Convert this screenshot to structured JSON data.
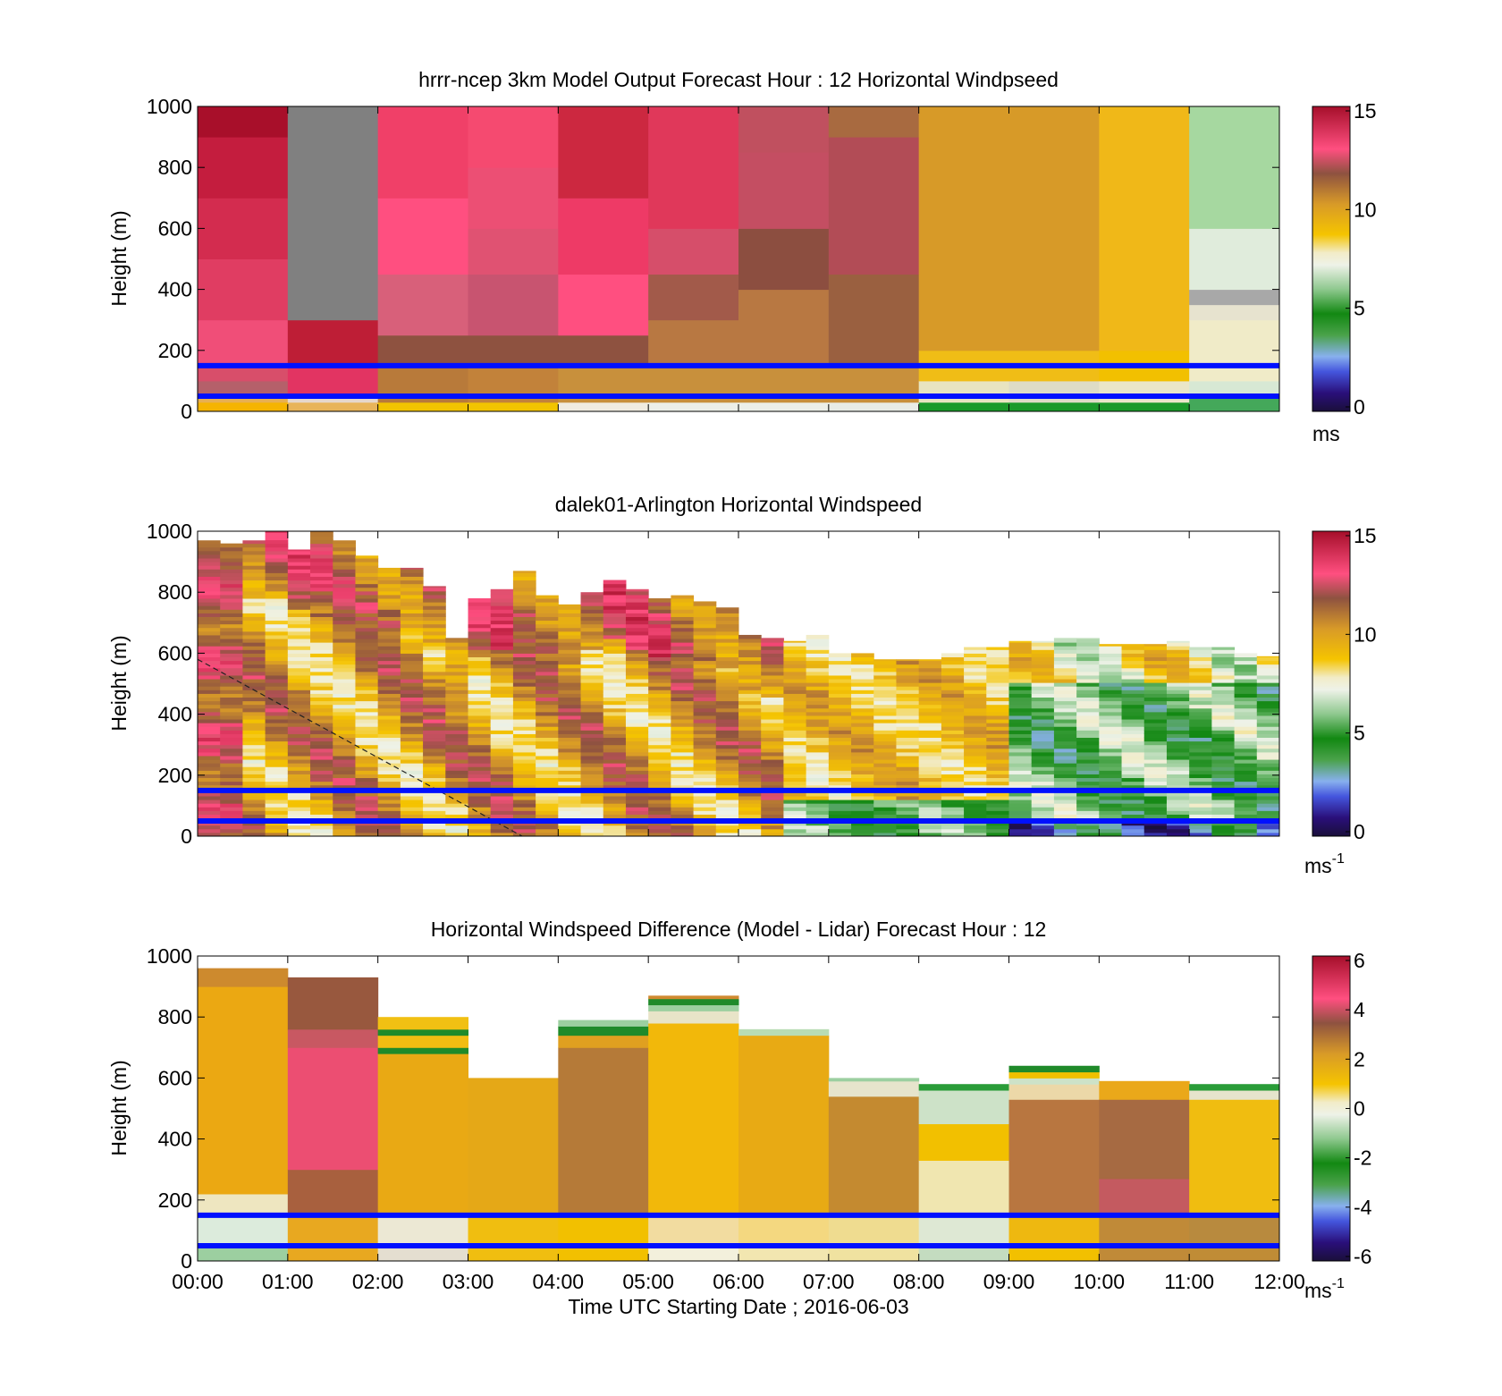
{
  "figure": {
    "xlabel": "Time UTC  Starting Date ; 2016-06-03"
  },
  "chart_data": [
    {
      "type": "heatmap",
      "title": "hrrr-ncep 3km Model Output   Forecast Hour : 12 Horizontal Windpseed",
      "ylabel": "Height (m)",
      "ylim": [
        0,
        1000
      ],
      "yticks": [
        "0",
        "200",
        "400",
        "600",
        "800",
        "1000"
      ],
      "xticks": [],
      "colorbar": {
        "min": 0,
        "max": 15,
        "ticks": [
          "0",
          "5",
          "10",
          "15"
        ],
        "units": "ms",
        "units_sup": ""
      },
      "reference_lines_m": [
        150,
        50
      ],
      "columns": [
        {
          "x0": 0,
          "x1": 1,
          "cells": [
            [
              0,
              30,
              "#f5b400"
            ],
            [
              30,
              50,
              "#e8b050"
            ],
            [
              50,
              100,
              "#b5606a"
            ],
            [
              100,
              150,
              "#d84e6a"
            ],
            [
              150,
              300,
              "#f04e78"
            ],
            [
              300,
              500,
              "#e03d62"
            ],
            [
              500,
              700,
              "#d32c4f"
            ],
            [
              700,
              900,
              "#c41d3e"
            ],
            [
              900,
              1000,
              "#a80f2a"
            ]
          ]
        },
        {
          "x0": 1,
          "x1": 2,
          "cells": [
            [
              0,
              30,
              "#e8b45a"
            ],
            [
              30,
              50,
              "#e6d7cc"
            ],
            [
              50,
              150,
              "#e23462"
            ],
            [
              150,
              300,
              "#be1e36"
            ],
            [
              300,
              1000,
              "#808080"
            ]
          ]
        },
        {
          "x0": 2,
          "x1": 3,
          "cells": [
            [
              0,
              30,
              "#f2c400"
            ],
            [
              30,
              150,
              "#b87a3a"
            ],
            [
              150,
              250,
              "#8e5240"
            ],
            [
              250,
              450,
              "#d8607a"
            ],
            [
              450,
              700,
              "#ff4f80"
            ],
            [
              700,
              1000,
              "#f04068"
            ]
          ]
        },
        {
          "x0": 3,
          "x1": 4,
          "cells": [
            [
              0,
              30,
              "#f2c400"
            ],
            [
              30,
              150,
              "#c2823a"
            ],
            [
              150,
              250,
              "#8e5240"
            ],
            [
              250,
              450,
              "#c85470"
            ],
            [
              450,
              600,
              "#e05272"
            ],
            [
              600,
              800,
              "#ec4f74"
            ],
            [
              800,
              1000,
              "#f54a70"
            ]
          ]
        },
        {
          "x0": 4,
          "x1": 5,
          "cells": [
            [
              0,
              30,
              "#f0ece0"
            ],
            [
              30,
              150,
              "#c8903c"
            ],
            [
              150,
              250,
              "#8e5240"
            ],
            [
              250,
              450,
              "#ff4f80"
            ],
            [
              450,
              700,
              "#ee3a66"
            ],
            [
              700,
              1000,
              "#cc2840"
            ]
          ]
        },
        {
          "x0": 5,
          "x1": 6,
          "cells": [
            [
              0,
              30,
              "#ecefe8"
            ],
            [
              30,
              150,
              "#c8903c"
            ],
            [
              150,
              300,
              "#b87842"
            ],
            [
              300,
              450,
              "#a25a4a"
            ],
            [
              450,
              600,
              "#d64e6a"
            ],
            [
              600,
              1000,
              "#e0385a"
            ]
          ]
        },
        {
          "x0": 6,
          "x1": 7,
          "cells": [
            [
              0,
              30,
              "#ecefe8"
            ],
            [
              30,
              150,
              "#c8903c"
            ],
            [
              150,
              400,
              "#b87842"
            ],
            [
              400,
              600,
              "#8c4e40"
            ],
            [
              600,
              850,
              "#c44e62"
            ],
            [
              850,
              1000,
              "#c0505f"
            ]
          ]
        },
        {
          "x0": 7,
          "x1": 8,
          "cells": [
            [
              0,
              30,
              "#e8ece6"
            ],
            [
              30,
              150,
              "#c8903c"
            ],
            [
              150,
              450,
              "#9a6040"
            ],
            [
              450,
              900,
              "#b24c56"
            ],
            [
              900,
              1000,
              "#a86a40"
            ]
          ]
        },
        {
          "x0": 8,
          "x1": 9,
          "cells": [
            [
              0,
              30,
              "#1a9a2a"
            ],
            [
              30,
              100,
              "#e8e4c0"
            ],
            [
              100,
              200,
              "#f0bd16"
            ],
            [
              200,
              1000,
              "#d79a28"
            ]
          ]
        },
        {
          "x0": 9,
          "x1": 10,
          "cells": [
            [
              0,
              30,
              "#1a9a2a"
            ],
            [
              30,
              100,
              "#dedcc6"
            ],
            [
              100,
              200,
              "#f0bd16"
            ],
            [
              200,
              1000,
              "#d79a28"
            ]
          ]
        },
        {
          "x0": 10,
          "x1": 11,
          "cells": [
            [
              0,
              30,
              "#1a9a2a"
            ],
            [
              30,
              100,
              "#eae6c8"
            ],
            [
              100,
              200,
              "#f2c000"
            ],
            [
              200,
              1000,
              "#f0b818"
            ]
          ]
        },
        {
          "x0": 11,
          "x1": 12,
          "cells": [
            [
              0,
              50,
              "#44a85a"
            ],
            [
              50,
              100,
              "#d7e8d4"
            ],
            [
              100,
              300,
              "#f0ebc8"
            ],
            [
              300,
              350,
              "#e7e3cf"
            ],
            [
              350,
              400,
              "#a8a8a8"
            ],
            [
              400,
              600,
              "#e0ecdc"
            ],
            [
              600,
              1000,
              "#a6d8a0"
            ]
          ]
        }
      ]
    },
    {
      "type": "heatmap",
      "title": "dalek01-Arlington  Horizontal Windspeed",
      "ylabel": "Height (m)",
      "ylim": [
        0,
        1000
      ],
      "yticks": [
        "0",
        "200",
        "400",
        "600",
        "800",
        "1000"
      ],
      "xticks": [],
      "colorbar": {
        "min": 0,
        "max": 15,
        "ticks": [
          "0",
          "5",
          "10",
          "15"
        ],
        "units": "ms",
        "units_sup": "-1"
      },
      "reference_lines_m": [
        150,
        50
      ],
      "dashed_line": {
        "x": [
          0,
          3.6
        ],
        "y": [
          580,
          0
        ]
      },
      "profile_tops_m": [
        970,
        960,
        970,
        1000,
        940,
        1000,
        970,
        920,
        880,
        880,
        820,
        650,
        780,
        810,
        870,
        790,
        760,
        800,
        840,
        810,
        780,
        790,
        770,
        750,
        660,
        650,
        640,
        660,
        600,
        600,
        580,
        580,
        580,
        600,
        620,
        620,
        640,
        640,
        650,
        650,
        630,
        630,
        630,
        640,
        620,
        620,
        600,
        590
      ]
    },
    {
      "type": "heatmap",
      "title": "Horizontal Windspeed Difference (Model - Lidar) Forecast Hour : 12",
      "ylabel": "Height (m)",
      "ylim": [
        0,
        1000
      ],
      "yticks": [
        "0",
        "200",
        "400",
        "600",
        "800",
        "1000"
      ],
      "xticks": [
        "00:00",
        "01:00",
        "02:00",
        "03:00",
        "04:00",
        "05:00",
        "06:00",
        "07:00",
        "08:00",
        "09:00",
        "10:00",
        "11:00",
        "12:00"
      ],
      "colorbar": {
        "min": -6,
        "max": 6,
        "ticks": [
          "-6",
          "-4",
          "-2",
          "0",
          "2",
          "4",
          "6"
        ],
        "units": "ms",
        "units_sup": "-1"
      },
      "reference_lines_m": [
        150,
        50
      ],
      "columns": [
        {
          "x0": 0,
          "x1": 1,
          "cells": [
            [
              0,
              50,
              "#9ccfa0"
            ],
            [
              50,
              150,
              "#dcebdc"
            ],
            [
              150,
              220,
              "#eee6c0"
            ],
            [
              220,
              900,
              "#eba812"
            ],
            [
              900,
              960,
              "#cd8a2e"
            ]
          ]
        },
        {
          "x0": 1,
          "x1": 2,
          "cells": [
            [
              0,
              150,
              "#e8a820"
            ],
            [
              150,
              300,
              "#a8603e"
            ],
            [
              300,
              700,
              "#ec4e72"
            ],
            [
              700,
              760,
              "#c85862"
            ],
            [
              760,
              930,
              "#98583e"
            ]
          ]
        },
        {
          "x0": 2,
          "x1": 3,
          "cells": [
            [
              0,
              50,
              "#e4ded0"
            ],
            [
              50,
              150,
              "#ece8d4"
            ],
            [
              150,
              680,
              "#e9a914"
            ],
            [
              680,
              700,
              "#1f8a2a"
            ],
            [
              700,
              740,
              "#f1bd12"
            ],
            [
              740,
              760,
              "#1f8a2a"
            ],
            [
              760,
              800,
              "#f1c013"
            ]
          ]
        },
        {
          "x0": 3,
          "x1": 4,
          "cells": [
            [
              0,
              150,
              "#f0be10"
            ],
            [
              150,
              600,
              "#e5a817"
            ]
          ]
        },
        {
          "x0": 4,
          "x1": 5,
          "cells": [
            [
              0,
              150,
              "#f2c000"
            ],
            [
              150,
              700,
              "#b57a38"
            ],
            [
              700,
              740,
              "#e0a020"
            ],
            [
              740,
              770,
              "#1f8a2a"
            ],
            [
              770,
              790,
              "#9ccfa0"
            ]
          ]
        },
        {
          "x0": 5,
          "x1": 6,
          "cells": [
            [
              0,
              50,
              "#f3f0dc"
            ],
            [
              50,
              150,
              "#f2dca0"
            ],
            [
              150,
              780,
              "#f2b80a"
            ],
            [
              780,
              820,
              "#e8e4c8"
            ],
            [
              820,
              840,
              "#9ccfa0"
            ],
            [
              840,
              860,
              "#1f8a2a"
            ],
            [
              860,
              870,
              "#d08a30"
            ]
          ]
        },
        {
          "x0": 6,
          "x1": 7,
          "cells": [
            [
              0,
              50,
              "#f2e6b0"
            ],
            [
              50,
              150,
              "#f4d880"
            ],
            [
              150,
              740,
              "#e8aa14"
            ],
            [
              740,
              760,
              "#b8dcb4"
            ]
          ]
        },
        {
          "x0": 7,
          "x1": 8,
          "cells": [
            [
              0,
              50,
              "#f0e2a0"
            ],
            [
              50,
              150,
              "#efdc90"
            ],
            [
              150,
              540,
              "#c48a30"
            ],
            [
              540,
              590,
              "#e6e4cc"
            ],
            [
              590,
              600,
              "#9ccfa0"
            ]
          ]
        },
        {
          "x0": 8,
          "x1": 9,
          "cells": [
            [
              0,
              50,
              "#c4dcc0"
            ],
            [
              50,
              150,
              "#dee8d4"
            ],
            [
              150,
              330,
              "#f0e6b0"
            ],
            [
              330,
              450,
              "#f2c000"
            ],
            [
              450,
              560,
              "#cde2c8"
            ],
            [
              560,
              580,
              "#2a9c38"
            ]
          ]
        },
        {
          "x0": 9,
          "x1": 10,
          "cells": [
            [
              0,
              50,
              "#f2c000"
            ],
            [
              50,
              150,
              "#eeb810"
            ],
            [
              150,
              530,
              "#b87640"
            ],
            [
              530,
              580,
              "#ecd8a8"
            ],
            [
              580,
              600,
              "#cde2c8"
            ],
            [
              600,
              620,
              "#f0c000"
            ],
            [
              620,
              640,
              "#1f8a2a"
            ]
          ]
        },
        {
          "x0": 10,
          "x1": 11,
          "cells": [
            [
              0,
              150,
              "#c08a38"
            ],
            [
              150,
              270,
              "#c45a60"
            ],
            [
              270,
              530,
              "#a66a42"
            ],
            [
              530,
              590,
              "#eaa81a"
            ]
          ]
        },
        {
          "x0": 11,
          "x1": 12,
          "cells": [
            [
              0,
              50,
              "#c08c36"
            ],
            [
              50,
              150,
              "#b88a3e"
            ],
            [
              150,
              530,
              "#f0bd10"
            ],
            [
              530,
              560,
              "#e6e4cc"
            ],
            [
              560,
              580,
              "#2a9c38"
            ]
          ]
        }
      ]
    }
  ]
}
